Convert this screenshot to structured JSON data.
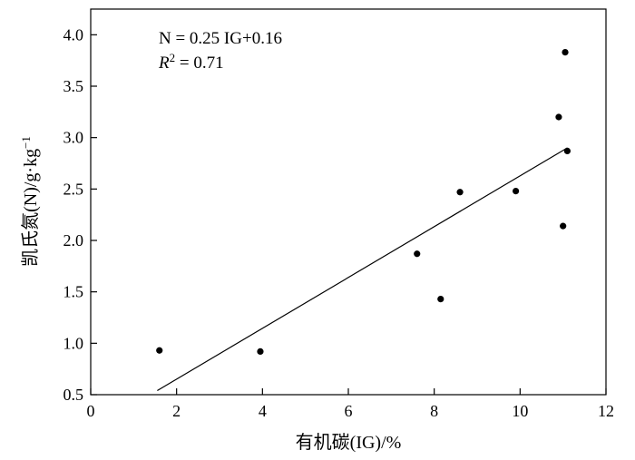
{
  "chart_data": {
    "type": "scatter",
    "title": "",
    "xlabel": "有机碳(IG)/%",
    "ylabel": "凯氏氮(N)/g·kg",
    "ylabel_sup": "−1",
    "xlim": [
      0,
      12
    ],
    "ylim": [
      0.5,
      4.25
    ],
    "x_ticks": [
      0,
      2,
      4,
      6,
      8,
      10,
      12
    ],
    "x_tick_labels": [
      "0",
      "2",
      "4",
      "6",
      "8",
      "10",
      "12"
    ],
    "y_ticks": [
      0.5,
      1.0,
      1.5,
      2.0,
      2.5,
      3.0,
      3.5,
      4.0
    ],
    "y_tick_labels": [
      "0.5",
      "1.0",
      "1.5",
      "2.0",
      "2.5",
      "3.0",
      "3.5",
      "4.0"
    ],
    "grid": false,
    "legend": "none",
    "series": [
      {
        "points": [
          {
            "x": 1.6,
            "y": 0.93
          },
          {
            "x": 3.95,
            "y": 0.92
          },
          {
            "x": 7.6,
            "y": 1.87
          },
          {
            "x": 8.15,
            "y": 1.43
          },
          {
            "x": 8.6,
            "y": 2.47
          },
          {
            "x": 9.9,
            "y": 2.48
          },
          {
            "x": 10.9,
            "y": 3.2
          },
          {
            "x": 11.0,
            "y": 2.14
          },
          {
            "x": 11.05,
            "y": 3.83
          },
          {
            "x": 11.1,
            "y": 2.87
          }
        ]
      }
    ],
    "fit_line": {
      "x1": 1.55,
      "y1": 0.54,
      "x2": 11.1,
      "y2": 2.9
    },
    "annotations": {
      "equation": "N = 0.25  IG+0.16",
      "r2_label": "R",
      "r2_sup": "2",
      "r2_value": " = 0.71"
    }
  }
}
